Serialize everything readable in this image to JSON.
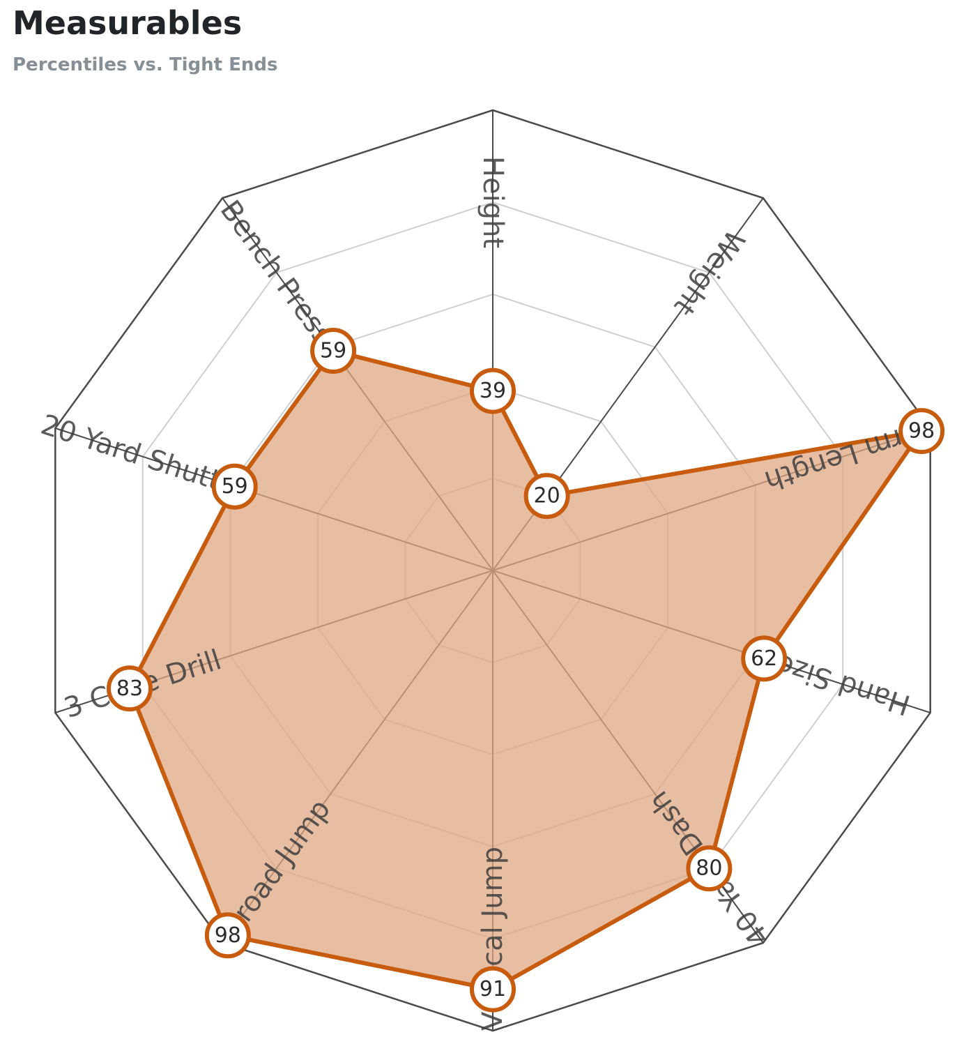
{
  "header": {
    "title": "Measurables",
    "subtitle": "Percentiles vs. Tight Ends"
  },
  "colors": {
    "accent": "#c75b0e",
    "fill": "#e0a884",
    "grid_outer": "#4a4a4a",
    "grid_inner": "#cfcfcf",
    "spoke": "#4a4a4a"
  },
  "chart_data": {
    "type": "radar",
    "rmax": 100,
    "gridlines": [
      20,
      40,
      60,
      80,
      100
    ],
    "categories": [
      "Height",
      "Weight",
      "Arm Length",
      "Hand Size",
      "40 Yard Dash",
      "Vertical Jump",
      "Broad Jump",
      "3 Cone Drill",
      "20 Yard Shuttle",
      "Bench Press"
    ],
    "values": [
      39,
      20,
      98,
      62,
      80,
      91,
      98,
      83,
      59,
      59
    ]
  }
}
